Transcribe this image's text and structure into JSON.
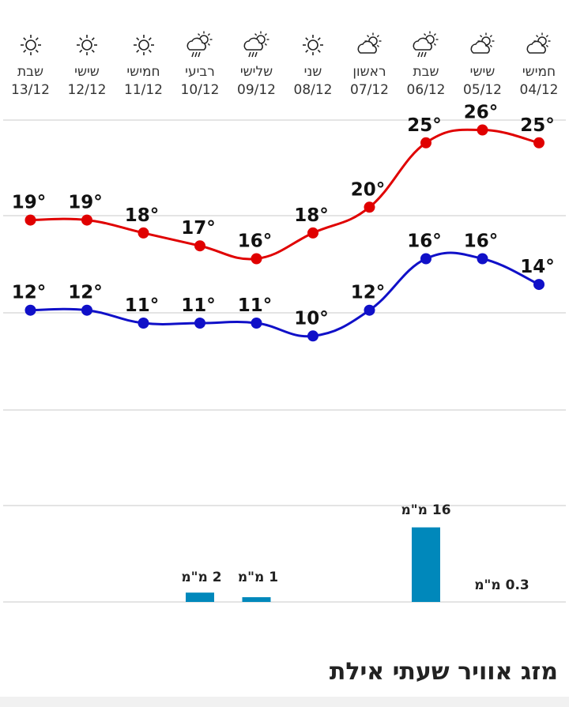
{
  "page_title": "מזג אוויר שעתי אילת",
  "days": [
    {
      "name": "חמישי",
      "date": "04/12",
      "icon": "partly-cloudy-icon"
    },
    {
      "name": "שישי",
      "date": "05/12",
      "icon": "partly-cloudy-icon"
    },
    {
      "name": "שבת",
      "date": "06/12",
      "icon": "rain-sun-cloud-icon"
    },
    {
      "name": "ראשון",
      "date": "07/12",
      "icon": "partly-cloudy-icon"
    },
    {
      "name": "שני",
      "date": "08/12",
      "icon": "sun-icon"
    },
    {
      "name": "שלישי",
      "date": "09/12",
      "icon": "rain-sun-cloud-icon"
    },
    {
      "name": "רביעי",
      "date": "10/12",
      "icon": "rain-sun-cloud-icon"
    },
    {
      "name": "חמישי",
      "date": "11/12",
      "icon": "sun-icon"
    },
    {
      "name": "שישי",
      "date": "12/12",
      "icon": "sun-icon"
    },
    {
      "name": "שבת",
      "date": "13/12",
      "icon": "sun-icon"
    }
  ],
  "chart_data": {
    "type": "line",
    "categories": [
      "04/12",
      "05/12",
      "06/12",
      "07/12",
      "08/12",
      "09/12",
      "10/12",
      "11/12",
      "12/12",
      "13/12"
    ],
    "series": [
      {
        "values": [
          25,
          26,
          25,
          20,
          18,
          16,
          17,
          18,
          19,
          19
        ],
        "labels": [
          "25°",
          "26°",
          "25°",
          "20°",
          "18°",
          "16°",
          "17°",
          "18°",
          "19°",
          "19°"
        ],
        "color": "#e00000"
      },
      {
        "values": [
          14,
          16,
          16,
          12,
          10,
          11,
          11,
          11,
          12,
          12
        ],
        "labels": [
          "14°",
          "16°",
          "16°",
          "12°",
          "10°",
          "11°",
          "11°",
          "11°",
          "12°",
          "12°"
        ],
        "color": "#1010c8"
      },
      {
        "type": "bar",
        "values": [
          0.3,
          null,
          16,
          null,
          null,
          1,
          2,
          null,
          null,
          null
        ],
        "labels": [
          "0.3 מ\"מ",
          "",
          "16 מ\"מ",
          "",
          "",
          "1 מ\"מ",
          "2 מ\"מ",
          "",
          "",
          ""
        ],
        "color": "#0088bb"
      }
    ],
    "grid": true
  }
}
